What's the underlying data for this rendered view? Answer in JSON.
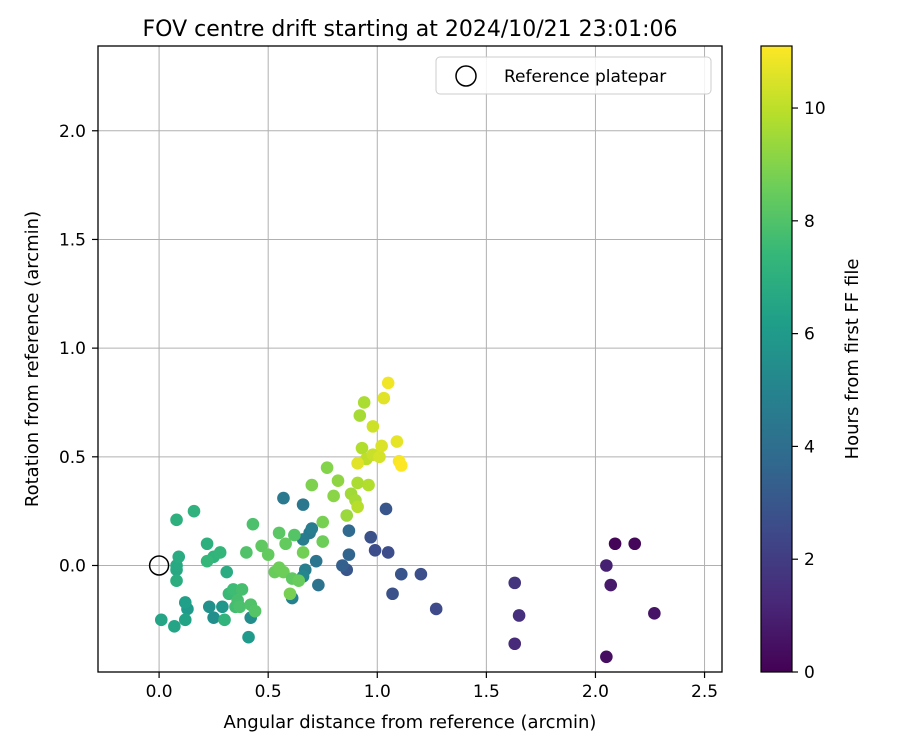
{
  "chart_data": {
    "type": "scatter",
    "title": "FOV centre drift starting at 2024/10/21 23:01:06",
    "xlabel": "Angular distance from reference (arcmin)",
    "ylabel": "Rotation from reference (arcmin)",
    "xlim": [
      -0.28,
      2.58
    ],
    "ylim": [
      -0.49,
      2.39
    ],
    "xticks": [
      0.0,
      0.5,
      1.0,
      1.5,
      2.0,
      2.5
    ],
    "xtick_labels": [
      "0.0",
      "0.5",
      "1.0",
      "1.5",
      "2.0",
      "2.5"
    ],
    "yticks": [
      0.0,
      0.5,
      1.0,
      1.5,
      2.0
    ],
    "ytick_labels": [
      "0.0",
      "0.5",
      "1.0",
      "1.5",
      "2.0"
    ],
    "grid": true,
    "legend": {
      "position": "top-right",
      "entries": [
        {
          "label": "Reference platepar",
          "marker": "open-circle",
          "color": "#000000",
          "x": 0.0,
          "y": 0.0
        }
      ]
    },
    "colorbar": {
      "label": "Hours from first FF file",
      "colormap": "viridis",
      "range": [
        0,
        11.1
      ],
      "ticks": [
        0,
        2,
        4,
        6,
        8,
        10
      ],
      "tick_labels": [
        "0",
        "2",
        "4",
        "6",
        "8",
        "10"
      ]
    },
    "colormap_stops": [
      "#440154",
      "#482878",
      "#3e4989",
      "#31688e",
      "#26828e",
      "#1f9e89",
      "#35b779",
      "#6ece58",
      "#b5de2b",
      "#fde725"
    ],
    "points": [
      {
        "x": 2.09,
        "y": 0.1,
        "h": 0.1
      },
      {
        "x": 2.18,
        "y": 0.1,
        "h": 0.2
      },
      {
        "x": 2.05,
        "y": -0.42,
        "h": 0.4
      },
      {
        "x": 2.27,
        "y": -0.22,
        "h": 0.6
      },
      {
        "x": 2.07,
        "y": -0.09,
        "h": 0.8
      },
      {
        "x": 2.05,
        "y": 0.0,
        "h": 1.0
      },
      {
        "x": 1.63,
        "y": -0.36,
        "h": 1.3
      },
      {
        "x": 1.65,
        "y": -0.23,
        "h": 1.5
      },
      {
        "x": 1.63,
        "y": -0.08,
        "h": 1.7
      },
      {
        "x": 1.27,
        "y": -0.2,
        "h": 2.5
      },
      {
        "x": 1.2,
        "y": -0.04,
        "h": 2.7
      },
      {
        "x": 1.11,
        "y": -0.04,
        "h": 2.9
      },
      {
        "x": 1.07,
        "y": -0.13,
        "h": 2.8
      },
      {
        "x": 1.05,
        "y": 0.06,
        "h": 2.6
      },
      {
        "x": 0.99,
        "y": 0.07,
        "h": 2.6
      },
      {
        "x": 0.97,
        "y": 0.13,
        "h": 2.8
      },
      {
        "x": 1.04,
        "y": 0.26,
        "h": 3.0
      },
      {
        "x": 0.86,
        "y": -0.02,
        "h": 3.0
      },
      {
        "x": 0.84,
        "y": 0.0,
        "h": 3.4
      },
      {
        "x": 0.87,
        "y": 0.05,
        "h": 3.6
      },
      {
        "x": 0.87,
        "y": 0.16,
        "h": 3.8
      },
      {
        "x": 0.73,
        "y": -0.09,
        "h": 4.2
      },
      {
        "x": 0.72,
        "y": 0.02,
        "h": 4.3
      },
      {
        "x": 0.69,
        "y": 0.15,
        "h": 4.5
      },
      {
        "x": 0.7,
        "y": 0.17,
        "h": 4.7
      },
      {
        "x": 0.66,
        "y": 0.12,
        "h": 4.6
      },
      {
        "x": 0.66,
        "y": 0.28,
        "h": 4.4
      },
      {
        "x": 0.57,
        "y": 0.31,
        "h": 4.5
      },
      {
        "x": 0.67,
        "y": -0.02,
        "h": 4.8
      },
      {
        "x": 0.61,
        "y": -0.15,
        "h": 4.9
      },
      {
        "x": 0.66,
        "y": -0.05,
        "h": 5.1
      },
      {
        "x": 0.42,
        "y": -0.24,
        "h": 5.4
      },
      {
        "x": 0.25,
        "y": -0.24,
        "h": 5.5
      },
      {
        "x": 0.23,
        "y": -0.19,
        "h": 5.6
      },
      {
        "x": 0.29,
        "y": -0.19,
        "h": 5.8
      },
      {
        "x": 0.41,
        "y": -0.33,
        "h": 6.0
      },
      {
        "x": 0.13,
        "y": -0.2,
        "h": 6.0
      },
      {
        "x": 0.12,
        "y": -0.17,
        "h": 6.2
      },
      {
        "x": 0.12,
        "y": -0.25,
        "h": 6.4
      },
      {
        "x": 0.01,
        "y": -0.25,
        "h": 6.5
      },
      {
        "x": 0.07,
        "y": -0.28,
        "h": 6.5
      },
      {
        "x": 0.08,
        "y": -0.02,
        "h": 6.6
      },
      {
        "x": 0.08,
        "y": 0.0,
        "h": 6.7
      },
      {
        "x": 0.09,
        "y": 0.04,
        "h": 6.8
      },
      {
        "x": 0.08,
        "y": -0.07,
        "h": 6.9
      },
      {
        "x": 0.08,
        "y": 0.21,
        "h": 7.0
      },
      {
        "x": 0.16,
        "y": 0.25,
        "h": 7.1
      },
      {
        "x": 0.22,
        "y": 0.1,
        "h": 7.0
      },
      {
        "x": 0.25,
        "y": 0.04,
        "h": 7.2
      },
      {
        "x": 0.28,
        "y": 0.06,
        "h": 7.3
      },
      {
        "x": 0.22,
        "y": 0.02,
        "h": 7.4
      },
      {
        "x": 0.31,
        "y": -0.03,
        "h": 6.8
      },
      {
        "x": 0.3,
        "y": -0.25,
        "h": 7.2
      },
      {
        "x": 0.32,
        "y": -0.13,
        "h": 7.5
      },
      {
        "x": 0.34,
        "y": -0.11,
        "h": 7.6
      },
      {
        "x": 0.35,
        "y": -0.19,
        "h": 7.7
      },
      {
        "x": 0.36,
        "y": -0.16,
        "h": 7.8
      },
      {
        "x": 0.38,
        "y": -0.11,
        "h": 7.8
      },
      {
        "x": 0.37,
        "y": -0.19,
        "h": 7.9
      },
      {
        "x": 0.42,
        "y": -0.18,
        "h": 8.0
      },
      {
        "x": 0.44,
        "y": -0.21,
        "h": 8.1
      },
      {
        "x": 0.4,
        "y": 0.06,
        "h": 8.0
      },
      {
        "x": 0.43,
        "y": 0.19,
        "h": 7.9
      },
      {
        "x": 0.47,
        "y": 0.09,
        "h": 8.3
      },
      {
        "x": 0.5,
        "y": 0.05,
        "h": 8.4
      },
      {
        "x": 0.53,
        "y": -0.03,
        "h": 8.5
      },
      {
        "x": 0.55,
        "y": 0.15,
        "h": 8.2
      },
      {
        "x": 0.55,
        "y": -0.01,
        "h": 8.6
      },
      {
        "x": 0.57,
        "y": -0.03,
        "h": 8.6
      },
      {
        "x": 0.58,
        "y": 0.1,
        "h": 8.4
      },
      {
        "x": 0.61,
        "y": -0.06,
        "h": 8.3
      },
      {
        "x": 0.6,
        "y": -0.13,
        "h": 8.8
      },
      {
        "x": 0.62,
        "y": 0.14,
        "h": 8.1
      },
      {
        "x": 0.64,
        "y": -0.07,
        "h": 8.5
      },
      {
        "x": 0.66,
        "y": 0.06,
        "h": 8.7
      },
      {
        "x": 0.7,
        "y": 0.37,
        "h": 8.9
      },
      {
        "x": 0.75,
        "y": 0.11,
        "h": 8.6
      },
      {
        "x": 0.75,
        "y": 0.2,
        "h": 8.8
      },
      {
        "x": 0.77,
        "y": 0.45,
        "h": 9.0
      },
      {
        "x": 0.8,
        "y": 0.32,
        "h": 9.1
      },
      {
        "x": 0.82,
        "y": 0.39,
        "h": 9.2
      },
      {
        "x": 0.86,
        "y": 0.23,
        "h": 9.4
      },
      {
        "x": 0.88,
        "y": 0.33,
        "h": 9.5
      },
      {
        "x": 0.9,
        "y": 0.3,
        "h": 9.6
      },
      {
        "x": 0.91,
        "y": 0.38,
        "h": 9.7
      },
      {
        "x": 0.91,
        "y": 0.27,
        "h": 9.9
      },
      {
        "x": 0.92,
        "y": 0.69,
        "h": 9.6
      },
      {
        "x": 0.93,
        "y": 0.54,
        "h": 9.8
      },
      {
        "x": 0.94,
        "y": 0.75,
        "h": 9.7
      },
      {
        "x": 0.95,
        "y": 0.49,
        "h": 10.0
      },
      {
        "x": 0.96,
        "y": 0.37,
        "h": 9.8
      },
      {
        "x": 0.98,
        "y": 0.51,
        "h": 10.2
      },
      {
        "x": 0.98,
        "y": 0.64,
        "h": 10.3
      },
      {
        "x": 1.01,
        "y": 0.5,
        "h": 10.4
      },
      {
        "x": 1.02,
        "y": 0.55,
        "h": 10.5
      },
      {
        "x": 1.03,
        "y": 0.77,
        "h": 10.6
      },
      {
        "x": 1.05,
        "y": 0.84,
        "h": 10.9
      },
      {
        "x": 0.91,
        "y": 0.47,
        "h": 10.6
      },
      {
        "x": 1.09,
        "y": 0.57,
        "h": 10.7
      },
      {
        "x": 1.1,
        "y": 0.48,
        "h": 11.0
      },
      {
        "x": 1.11,
        "y": 0.46,
        "h": 11.1
      }
    ]
  }
}
